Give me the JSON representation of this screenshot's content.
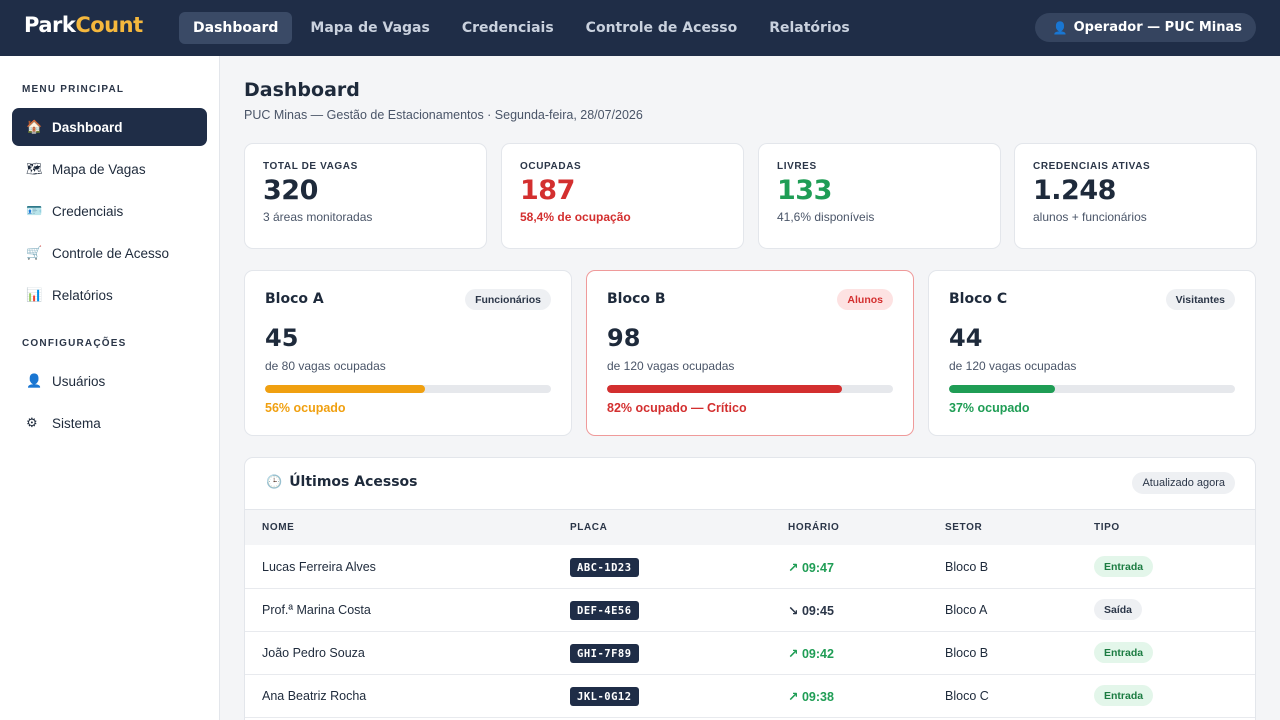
{
  "header": {
    "logo_part1": "Park",
    "logo_part2": "Count",
    "nav": [
      "Dashboard",
      "Mapa de Vagas",
      "Credenciais",
      "Controle de Acesso",
      "Relatórios"
    ],
    "operator": "Operador — PUC Minas"
  },
  "sidebar": {
    "section_main": "MENU PRINCIPAL",
    "items_main": [
      {
        "label": "Dashboard",
        "icon": "🏠"
      },
      {
        "label": "Mapa de Vagas",
        "icon": "🗺"
      },
      {
        "label": "Credenciais",
        "icon": "🪪"
      },
      {
        "label": "Controle de Acesso",
        "icon": "🛒"
      },
      {
        "label": "Relatórios",
        "icon": "📊"
      }
    ],
    "section_config": "CONFIGURAÇÕES",
    "items_config": [
      {
        "label": "Usuários",
        "icon": "👤"
      },
      {
        "label": "Sistema",
        "icon": "⚙"
      }
    ]
  },
  "page": {
    "title": "Dashboard",
    "subtitle": "PUC Minas — Gestão de Estacionamentos · Segunda-feira, 28/07/2026"
  },
  "stats": [
    {
      "label": "TOTAL DE VAGAS",
      "value": "320",
      "note": "3 áreas monitoradas",
      "color": "#1e2a3b",
      "note_color": "#4a5568"
    },
    {
      "label": "OCUPADAS",
      "value": "187",
      "note": "58,4% de ocupação",
      "color": "#d32f2f",
      "note_color": "#d32f2f"
    },
    {
      "label": "LIVRES",
      "value": "133",
      "note": "41,6% disponíveis",
      "color": "#1f9d55",
      "note_color": "#4a5568"
    },
    {
      "label": "CREDENCIAIS ATIVAS",
      "value": "1.248",
      "note": "alunos + funcionários",
      "color": "#1e2a3b",
      "note_color": "#4a5568"
    }
  ],
  "blocks": [
    {
      "name": "Bloco A",
      "tag": "Funcionários",
      "occupied": "45",
      "caption": "de 80 vagas ocupadas",
      "fraction": 0.56,
      "pct_label": "56% ocupado",
      "color": "#f0a010"
    },
    {
      "name": "Bloco B",
      "tag": "Alunos",
      "occupied": "98",
      "caption": "de 120 vagas ocupadas",
      "fraction": 0.82,
      "pct_label": "82% ocupado — Crítico",
      "color": "#d32f2f"
    },
    {
      "name": "Bloco C",
      "tag": "Visitantes",
      "occupied": "44",
      "caption": "de 120 vagas ocupadas",
      "fraction": 0.37,
      "pct_label": "37% ocupado",
      "color": "#1f9d55"
    }
  ],
  "access": {
    "title": "Últimos Acessos",
    "badge": "Atualizado agora",
    "columns": [
      "NOME",
      "PLACA",
      "HORÁRIO",
      "SETOR",
      "TIPO"
    ],
    "rows": [
      {
        "name": "Lucas Ferreira Alves",
        "plate": "ABC-1D23",
        "arrow": "↗",
        "time": "09:47",
        "sector": "Bloco B",
        "type": "Entrada",
        "kind": "in"
      },
      {
        "name": "Prof.ª Marina Costa",
        "plate": "DEF-4E56",
        "arrow": "↘",
        "time": "09:45",
        "sector": "Bloco A",
        "type": "Saída",
        "kind": "out"
      },
      {
        "name": "João Pedro Souza",
        "plate": "GHI-7F89",
        "arrow": "↗",
        "time": "09:42",
        "sector": "Bloco B",
        "type": "Entrada",
        "kind": "in"
      },
      {
        "name": "Ana Beatriz Rocha",
        "plate": "JKL-0G12",
        "arrow": "↗",
        "time": "09:38",
        "sector": "Bloco C",
        "type": "Entrada",
        "kind": "in"
      }
    ]
  }
}
